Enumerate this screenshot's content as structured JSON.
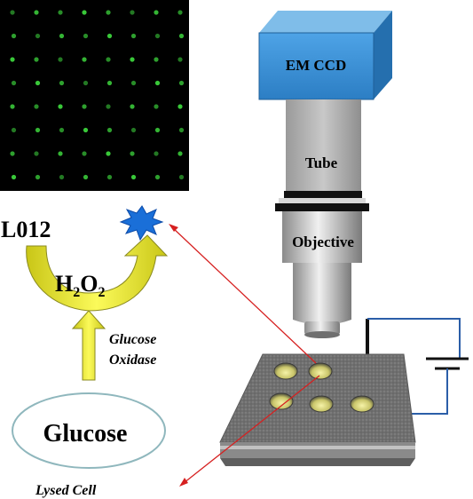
{
  "labels": {
    "camera": "EM CCD",
    "tube": "Tube",
    "objective": "Objective",
    "substrate": "L012",
    "h2o2_main": "H",
    "h2o2_sub1": "2",
    "h2o2_mid": "O",
    "h2o2_sub2": "2",
    "enzyme_line1": "Glucose",
    "enzyme_line2": "Oxidase",
    "glucose": "Glucose",
    "lysed_cell": "Lysed Cell"
  },
  "colors": {
    "camera": "#3b8fd4",
    "tube": "#a6a6a6",
    "lens": "#b5b5b5",
    "arrow_yellow": "#f2ef2a",
    "arrow_red": "#d62020",
    "chip": "#7a7a7a",
    "emission": "#1a6fd8",
    "glow": "#4dff4d",
    "circuit": "#2b5ea8",
    "ellipse": "#8fb7bd"
  }
}
